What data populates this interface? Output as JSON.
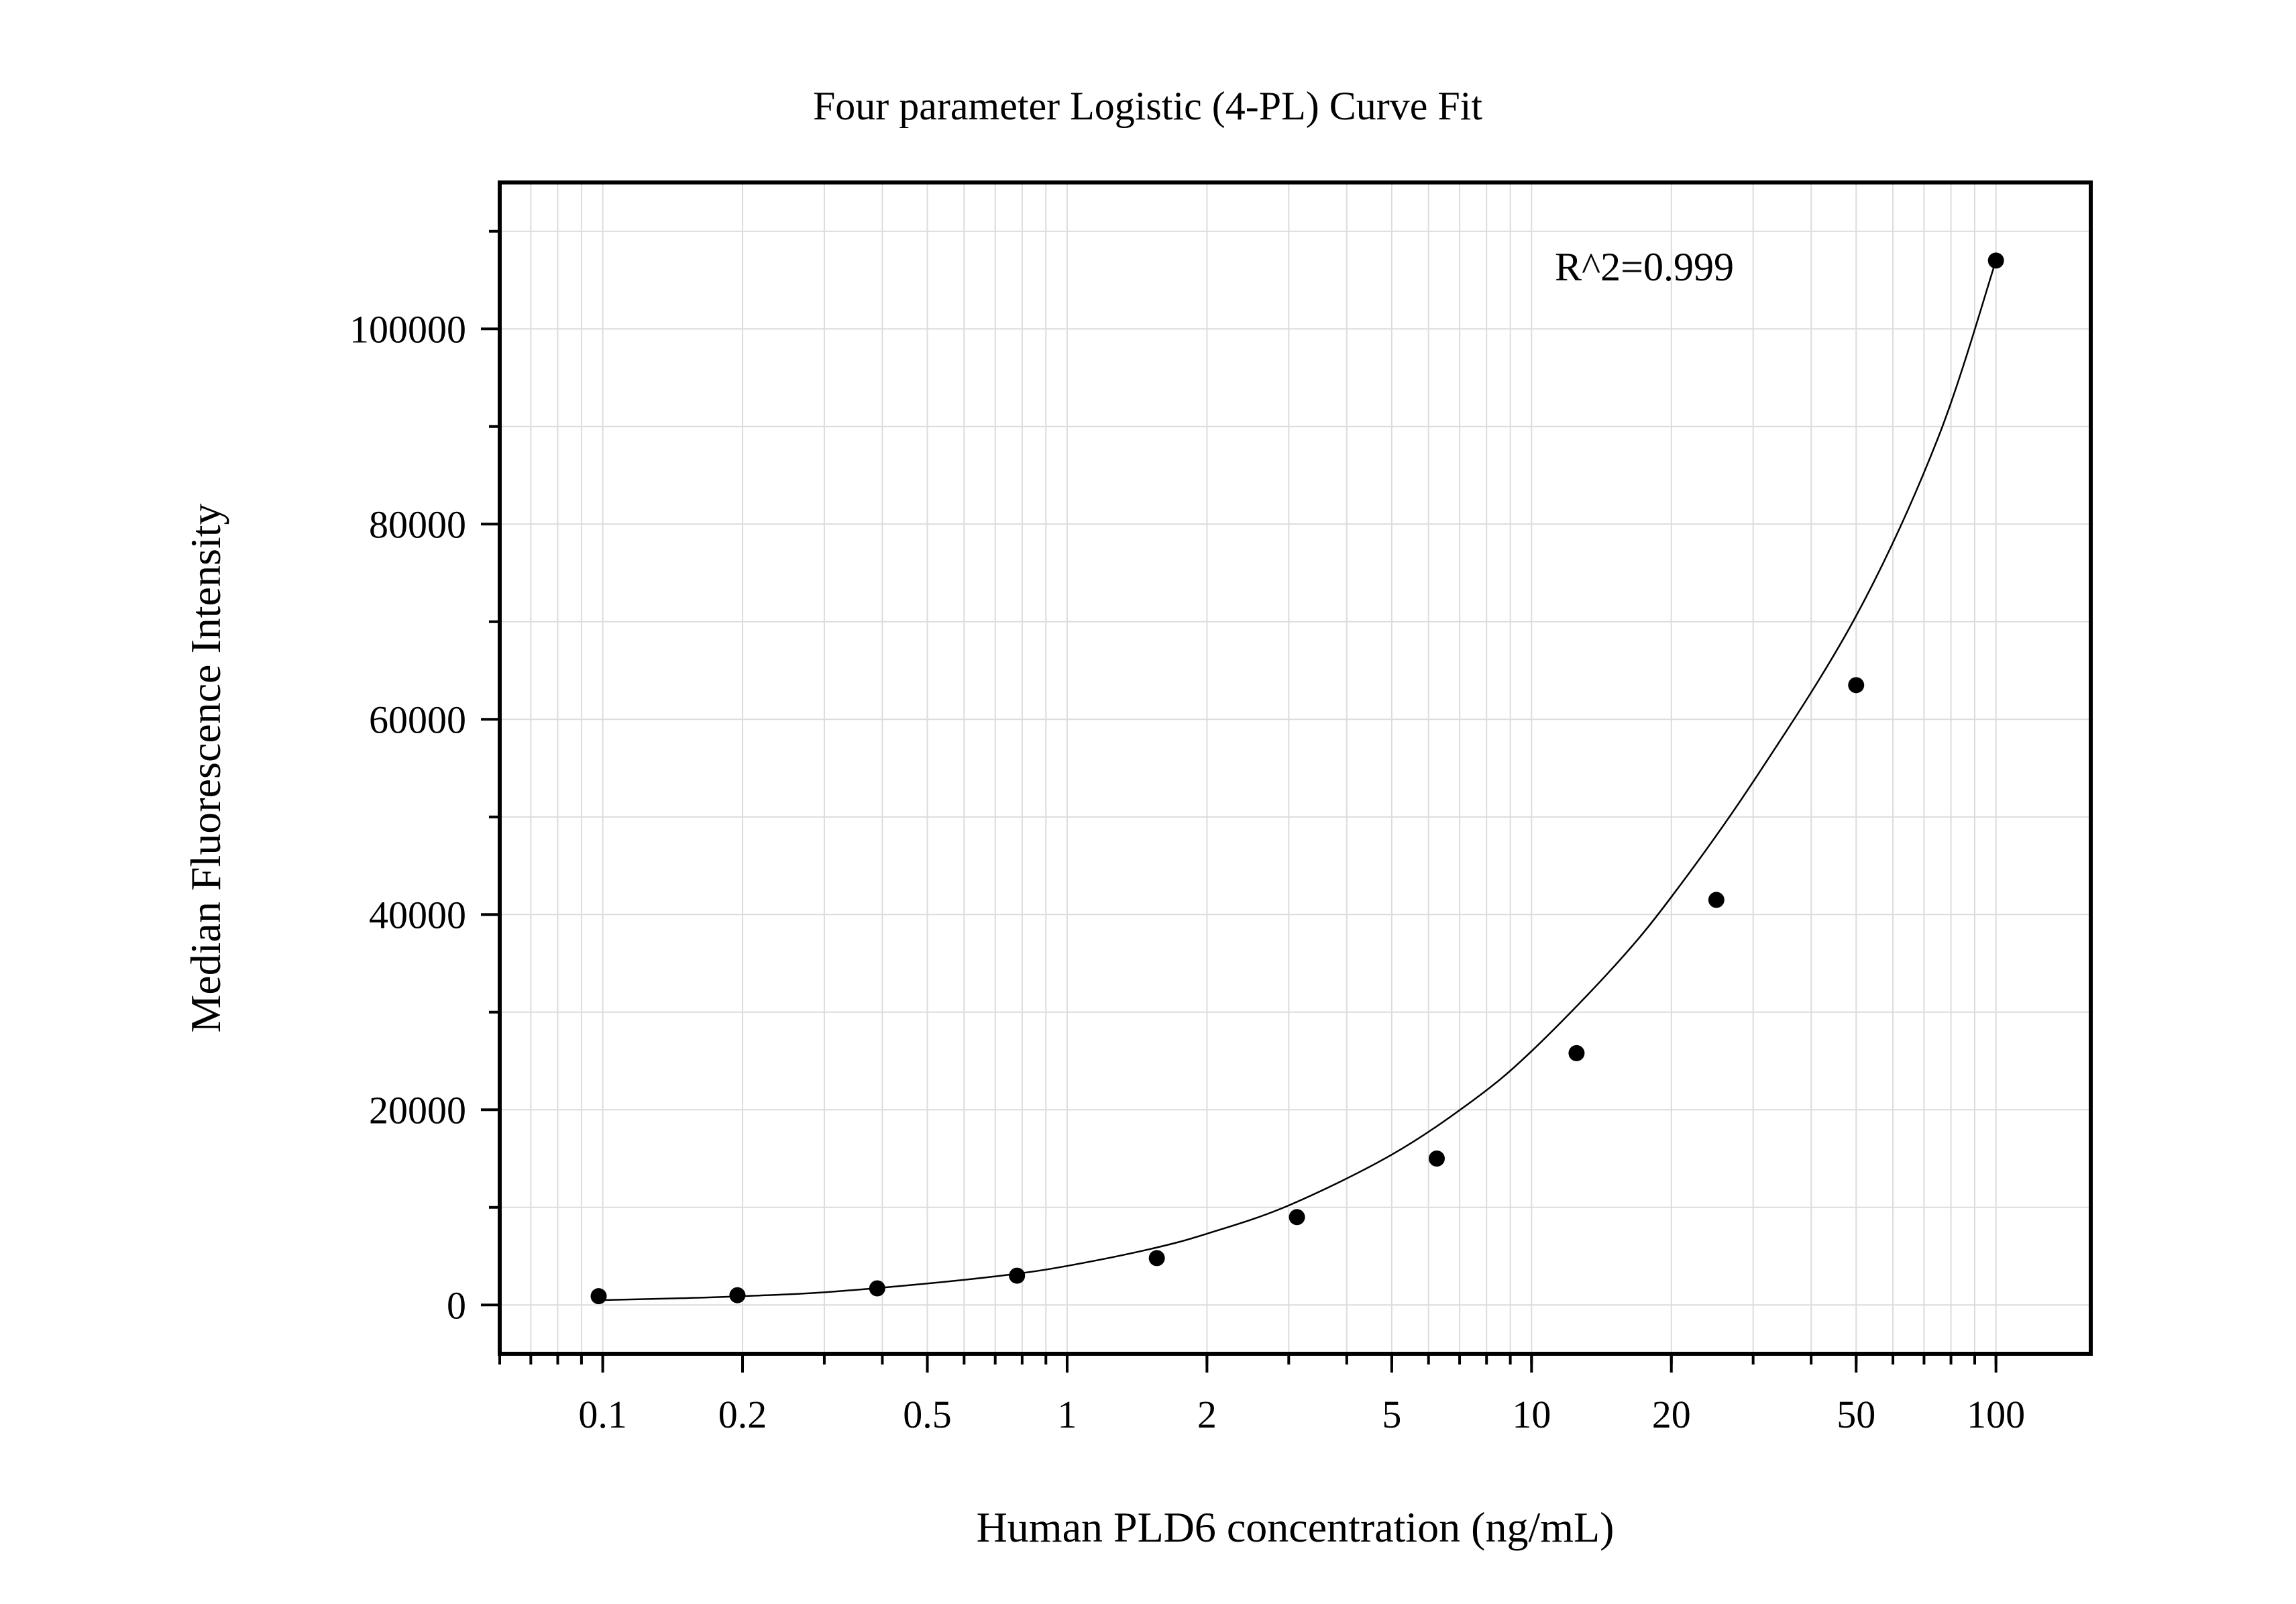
{
  "chart_data": {
    "type": "scatter",
    "title": "Four parameter Logistic (4-PL) Curve Fit",
    "xlabel": "Human PLD6 concentration (ng/mL)",
    "ylabel": "Median Fluorescence Intensity",
    "x_scale": "log",
    "xlim": [
      0.06,
      160
    ],
    "ylim": [
      -5000,
      115000
    ],
    "x_ticks": [
      0.1,
      0.2,
      0.5,
      1,
      2,
      5,
      10,
      20,
      50,
      100
    ],
    "x_tick_labels": [
      "0.1",
      "0.2",
      "0.5",
      "1",
      "2",
      "5",
      "10",
      "20",
      "50",
      "100"
    ],
    "y_ticks": [
      0,
      20000,
      40000,
      60000,
      80000,
      100000
    ],
    "y_tick_labels": [
      "0",
      "20000",
      "40000",
      "60000",
      "80000",
      "100000"
    ],
    "grid": true,
    "annotation": "R^2=0.999",
    "series": [
      {
        "points": [
          {
            "x": 0.098,
            "y": 900
          },
          {
            "x": 0.195,
            "y": 1000
          },
          {
            "x": 0.39,
            "y": 1700
          },
          {
            "x": 0.78,
            "y": 3000
          },
          {
            "x": 1.56,
            "y": 4800
          },
          {
            "x": 3.125,
            "y": 9000
          },
          {
            "x": 6.25,
            "y": 15000
          },
          {
            "x": 12.5,
            "y": 25800
          },
          {
            "x": 25,
            "y": 41500
          },
          {
            "x": 50,
            "y": 63500
          },
          {
            "x": 100,
            "y": 107000
          }
        ]
      }
    ],
    "fit_curve": {
      "model": "4PL",
      "x": [
        0.1,
        0.15,
        0.2,
        0.3,
        0.5,
        0.75,
        1,
        1.5,
        2,
        3,
        5,
        7.5,
        10,
        15,
        20,
        30,
        50,
        75,
        100
      ],
      "y": [
        500,
        700,
        900,
        1300,
        2200,
        3100,
        4000,
        5700,
        7300,
        10200,
        15400,
        21000,
        26000,
        34600,
        41800,
        53600,
        70600,
        88800,
        107000
      ]
    },
    "colors": {
      "points": "#000000",
      "curve": "#000000",
      "grid": "#dcdcdc",
      "axes": "#000000"
    }
  }
}
